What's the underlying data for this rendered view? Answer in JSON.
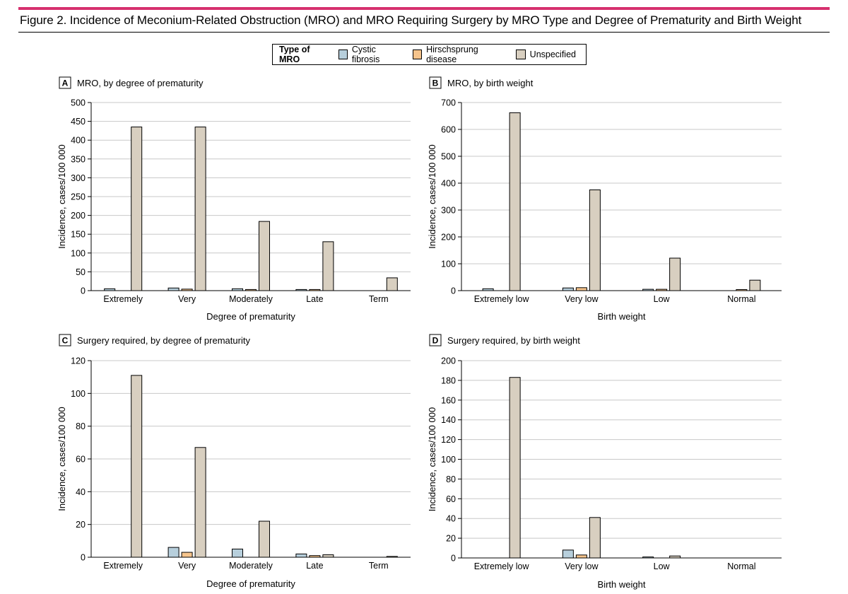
{
  "figure": {
    "title": "Figure 2. Incidence of Meconium-Related Obstruction (MRO) and MRO Requiring Surgery by MRO Type and Degree of Prematurity and Birth Weight"
  },
  "legend": {
    "title": "Type of MRO",
    "items": [
      {
        "label": "Cystic fibrosis",
        "color": "#b7cfdc"
      },
      {
        "label": "Hirschsprung disease",
        "color": "#f6c48c"
      },
      {
        "label": "Unspecified",
        "color": "#d8cfc0"
      }
    ]
  },
  "chart_data": [
    {
      "id": "A",
      "type": "bar",
      "panel_label": "A",
      "title": "MRO, by degree of prematurity",
      "xlabel": "Degree of prematurity",
      "ylabel": "Incidence, cases/100 000",
      "ylim": [
        0,
        500
      ],
      "yticks": [
        0,
        50,
        100,
        150,
        200,
        250,
        300,
        350,
        400,
        450,
        500
      ],
      "categories": [
        "Extremely",
        "Very",
        "Moderately",
        "Late",
        "Term"
      ],
      "series": [
        {
          "name": "Cystic fibrosis",
          "values": [
            5,
            7,
            5,
            3,
            0
          ]
        },
        {
          "name": "Hirschsprung disease",
          "values": [
            0,
            4,
            3,
            3,
            0
          ]
        },
        {
          "name": "Unspecified",
          "values": [
            435,
            435,
            184,
            130,
            34
          ]
        }
      ]
    },
    {
      "id": "B",
      "type": "bar",
      "panel_label": "B",
      "title": "MRO, by birth weight",
      "xlabel": "Birth weight",
      "ylabel": "Incidence, cases/100 000",
      "ylim": [
        0,
        700
      ],
      "yticks": [
        0,
        100,
        200,
        300,
        400,
        500,
        600,
        700
      ],
      "categories": [
        "Extremely low",
        "Very low",
        "Low",
        "Normal"
      ],
      "series": [
        {
          "name": "Cystic fibrosis",
          "values": [
            7,
            10,
            5,
            0
          ]
        },
        {
          "name": "Hirschsprung disease",
          "values": [
            0,
            11,
            5,
            4
          ]
        },
        {
          "name": "Unspecified",
          "values": [
            662,
            375,
            121,
            39
          ]
        }
      ]
    },
    {
      "id": "C",
      "type": "bar",
      "panel_label": "C",
      "title": "Surgery required, by degree of prematurity",
      "xlabel": "Degree of prematurity",
      "ylabel": "Incidence, cases/100 000",
      "ylim": [
        0,
        120
      ],
      "yticks": [
        0,
        20,
        40,
        60,
        80,
        100,
        120
      ],
      "categories": [
        "Extremely",
        "Very",
        "Moderately",
        "Late",
        "Term"
      ],
      "series": [
        {
          "name": "Cystic fibrosis",
          "values": [
            0,
            6,
            5,
            2,
            0
          ]
        },
        {
          "name": "Hirschsprung disease",
          "values": [
            0,
            3,
            0,
            1,
            0
          ]
        },
        {
          "name": "Unspecified",
          "values": [
            111,
            67,
            22,
            1.5,
            0.5
          ]
        }
      ]
    },
    {
      "id": "D",
      "type": "bar",
      "panel_label": "D",
      "title": "Surgery required, by birth weight",
      "xlabel": "Birth weight",
      "ylabel": "Incidence, cases/100 000",
      "ylim": [
        0,
        200
      ],
      "yticks": [
        0,
        20,
        40,
        60,
        80,
        100,
        120,
        140,
        160,
        180,
        200
      ],
      "categories": [
        "Extremely low",
        "Very low",
        "Low",
        "Normal"
      ],
      "series": [
        {
          "name": "Cystic fibrosis",
          "values": [
            0,
            8,
            1,
            0
          ]
        },
        {
          "name": "Hirschsprung disease",
          "values": [
            0,
            3,
            0,
            0
          ]
        },
        {
          "name": "Unspecified",
          "values": [
            183,
            41,
            2,
            0
          ]
        }
      ]
    }
  ]
}
